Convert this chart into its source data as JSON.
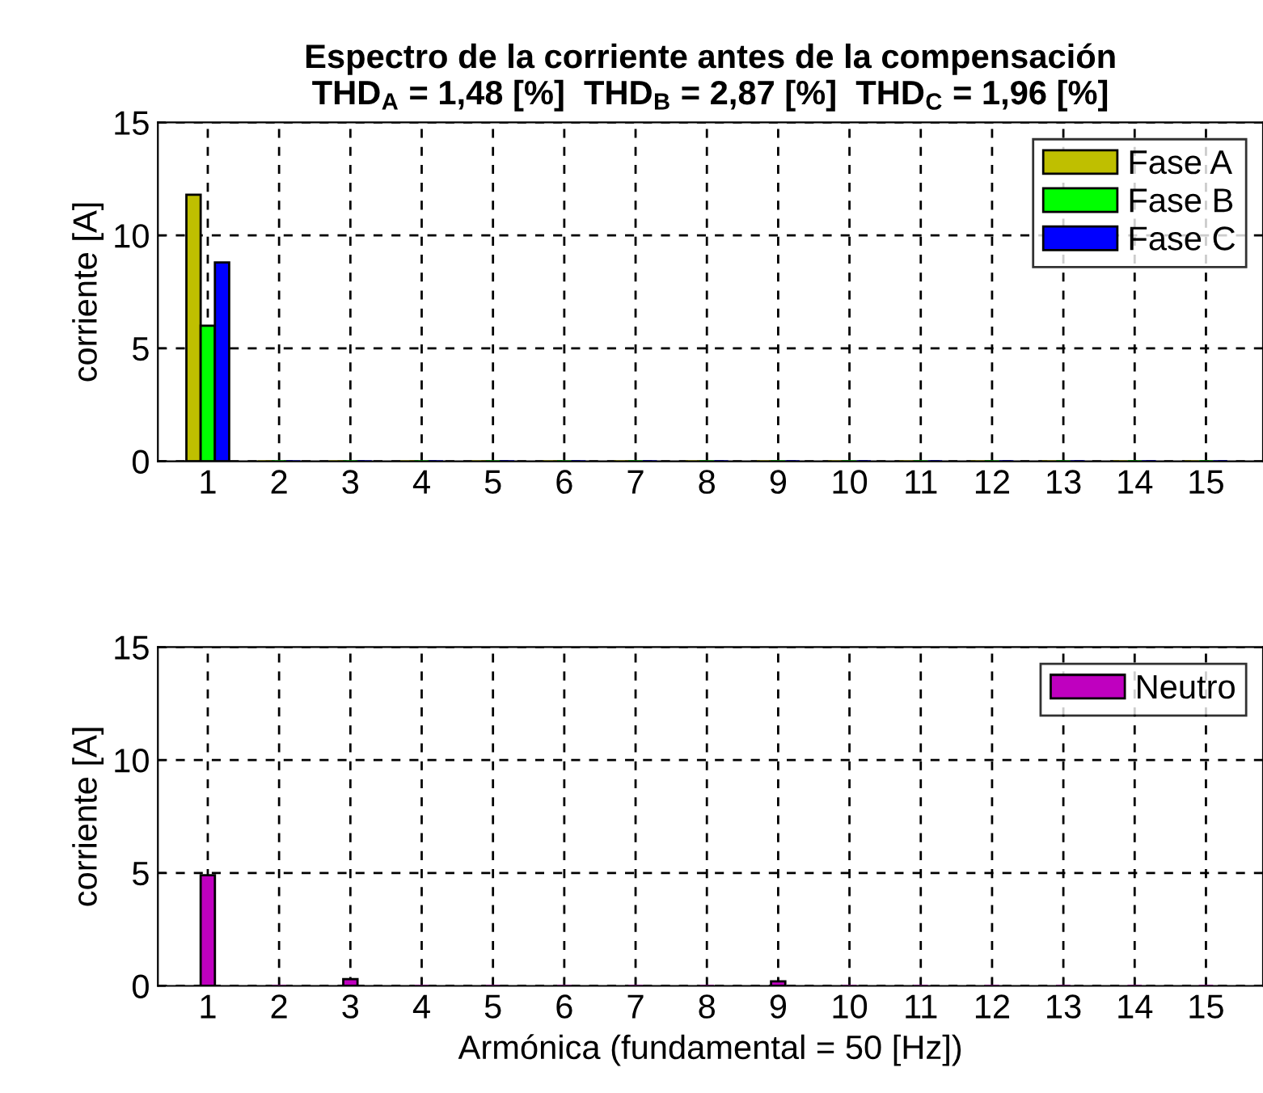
{
  "chart_data": [
    {
      "type": "bar",
      "title": "Espectro de la corriente antes de la compensación\nTHD$_{A}$ = 1,48 [%]  THD$_{B}$ = 2,87 [%]  THD$_{C}$ = 1,96 [%]",
      "ylabel": "corriente [A]",
      "x": [
        1,
        2,
        3,
        4,
        5,
        6,
        7,
        8,
        9,
        10,
        11,
        12,
        13,
        14,
        15
      ],
      "xlim": [
        0.3,
        15.8
      ],
      "xticks": [
        1,
        2,
        3,
        4,
        5,
        6,
        7,
        8,
        9,
        10,
        11,
        12,
        13,
        14,
        15
      ],
      "ylim": [
        0,
        15
      ],
      "yticks": [
        0,
        5,
        10,
        15
      ],
      "grid": true,
      "legend": "top right",
      "series": [
        {
          "name": "Fase A",
          "color": "#bfbf00",
          "values": [
            11.8,
            0,
            0,
            0,
            0,
            0,
            0,
            0,
            0,
            0,
            0,
            0,
            0,
            0,
            0
          ]
        },
        {
          "name": "Fase B",
          "color": "#00ff00",
          "values": [
            6.0,
            0,
            0,
            0,
            0,
            0,
            0,
            0,
            0,
            0,
            0,
            0,
            0,
            0,
            0
          ]
        },
        {
          "name": "Fase C",
          "color": "#0000ff",
          "values": [
            8.8,
            0,
            0,
            0,
            0,
            0,
            0,
            0,
            0,
            0,
            0,
            0,
            0,
            0,
            0
          ]
        }
      ]
    },
    {
      "type": "bar",
      "xlabel": "Armónica (fundamental = 50 [Hz])",
      "ylabel": "corriente [A]",
      "x": [
        1,
        2,
        3,
        4,
        5,
        6,
        7,
        8,
        9,
        10,
        11,
        12,
        13,
        14,
        15
      ],
      "xlim": [
        0.3,
        15.8
      ],
      "xticks": [
        1,
        2,
        3,
        4,
        5,
        6,
        7,
        8,
        9,
        10,
        11,
        12,
        13,
        14,
        15
      ],
      "ylim": [
        0,
        15
      ],
      "yticks": [
        0,
        5,
        10,
        15
      ],
      "grid": true,
      "legend": "top right",
      "series": [
        {
          "name": "Neutro",
          "color": "#bf00bf",
          "values": [
            4.9,
            0,
            0.3,
            0,
            0,
            0,
            0,
            0,
            0.2,
            0,
            0,
            0,
            0,
            0,
            0
          ]
        }
      ]
    }
  ]
}
